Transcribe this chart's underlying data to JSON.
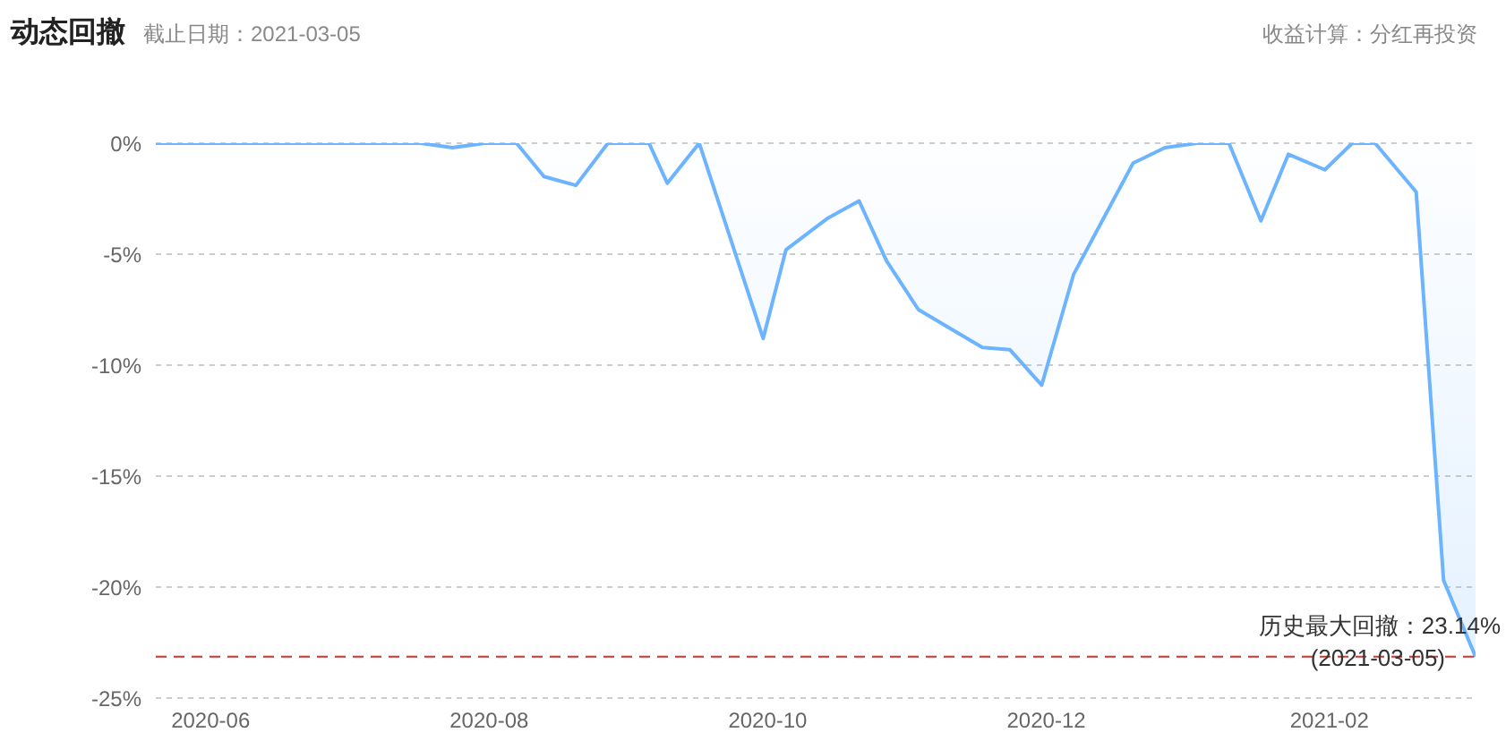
{
  "chart_data": {
    "type": "area",
    "title": "动态回撤",
    "subtitle": "截止日期：2021-03-05",
    "annotations": [
      "收益计算：分红再投资",
      {
        "text": "(2021-03-05)",
        "x": "2021-03-05",
        "y": -23.14
      }
    ],
    "x": [
      "2020-05-20",
      "2020-06-15",
      "2020-07-17",
      "2020-07-24",
      "2020-07-31",
      "2020-08-07",
      "2020-08-13",
      "2020-08-20",
      "2020-08-27",
      "2020-09-05",
      "2020-09-09",
      "2020-09-16",
      "2020-09-30",
      "2020-10-05",
      "2020-10-14",
      "2020-10-21",
      "2020-10-27",
      "2020-11-03",
      "2020-11-17",
      "2020-11-23",
      "2020-11-30",
      "2020-12-07",
      "2020-12-20",
      "2020-12-27",
      "2021-01-03",
      "2021-01-10",
      "2021-01-17",
      "2021-01-23",
      "2021-01-31",
      "2021-02-06",
      "2021-02-11",
      "2021-02-20",
      "2021-02-26",
      "2021-03-05"
    ],
    "series": [
      {
        "color": "#6cb4ff",
        "values": [
          0,
          0,
          0,
          -0.2,
          0,
          0,
          -1.5,
          -1.9,
          0,
          0,
          -1.8,
          0,
          -8.8,
          -4.8,
          -3.4,
          -2.6,
          -5.3,
          -7.5,
          -9.2,
          -9.3,
          -10.9,
          -5.9,
          -0.9,
          -0.2,
          0,
          0,
          -3.5,
          -0.5,
          -1.2,
          0,
          0,
          -2.2,
          -19.7,
          -23.14
        ]
      }
    ],
    "xlim": [
      "2020-05-20",
      "2021-03-05"
    ],
    "xticks": [
      {
        "value": "2020-06",
        "label": "2020-06"
      },
      {
        "value": "2020-08",
        "label": "2020-08"
      },
      {
        "value": "2020-10",
        "label": "2020-10"
      },
      {
        "value": "2020-12",
        "label": "2020-12"
      },
      {
        "value": "2021-02",
        "label": "2021-02"
      }
    ],
    "ylim": [
      -25,
      0
    ],
    "yticks": [
      {
        "value": 0,
        "label": "0%"
      },
      {
        "value": -5,
        "label": "-5%"
      },
      {
        "value": -10,
        "label": "-10%"
      },
      {
        "value": -15,
        "label": "-15%"
      },
      {
        "value": -20,
        "label": "-20%"
      },
      {
        "value": -25,
        "label": "-25%"
      }
    ],
    "grid": "y",
    "legend": false,
    "marker": "none",
    "line_style": "solid",
    "ref_lines": [
      {
        "axis": "y",
        "value": -23.14,
        "label": "历史最大回撤：23.14%",
        "color": "#d9302c",
        "line_style": "dashed"
      }
    ]
  }
}
